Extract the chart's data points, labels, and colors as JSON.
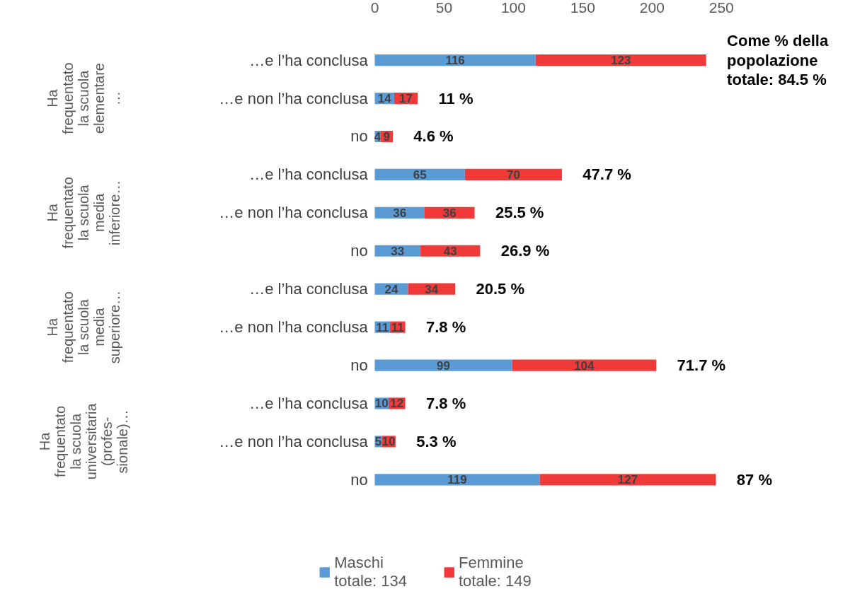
{
  "chart_data": {
    "type": "bar",
    "orientation": "horizontal",
    "stacked": true,
    "categories": [
      "…e l’ha conclusa",
      "…e non l’ha conclusa",
      "no",
      "…e l’ha conclusa",
      "…e non l’ha conclusa",
      "no",
      "…e l’ha conclusa",
      "…e non l’ha conclusa",
      "no",
      "…e l’ha conclusa",
      "…e non l’ha conclusa",
      "no"
    ],
    "series": [
      {
        "name": "Maschi totale: 134",
        "color": "#5b9bd5",
        "values": [
          116,
          14,
          4,
          65,
          36,
          33,
          24,
          11,
          99,
          10,
          5,
          119
        ]
      },
      {
        "name": "Femmine totale: 149",
        "color": "#f03a3a",
        "values": [
          123,
          17,
          9,
          70,
          36,
          43,
          34,
          11,
          104,
          12,
          10,
          127
        ]
      }
    ],
    "xlim": [
      0,
      250
    ],
    "xticks": [
      0,
      50,
      100,
      150,
      200,
      250
    ],
    "data_labels": true,
    "grid": false,
    "legend": "bottom",
    "annotations": [
      "Ha frequentato la scuola elementare …",
      "Ha frequentato la scuola media inferiore…",
      "Ha frequentato la scuola media superiore…",
      "Ha frequentato la scuola universitaria (profes-sionale)…",
      "Come % della popolazione totale: 84.5 %",
      "11 %",
      "4.6 %",
      "47.7 %",
      "25.5 %",
      "26.9 %",
      "20.5 %",
      "7.8 %",
      "71.7 %",
      "7.8 %",
      "5.3 %",
      "87 %"
    ]
  }
}
